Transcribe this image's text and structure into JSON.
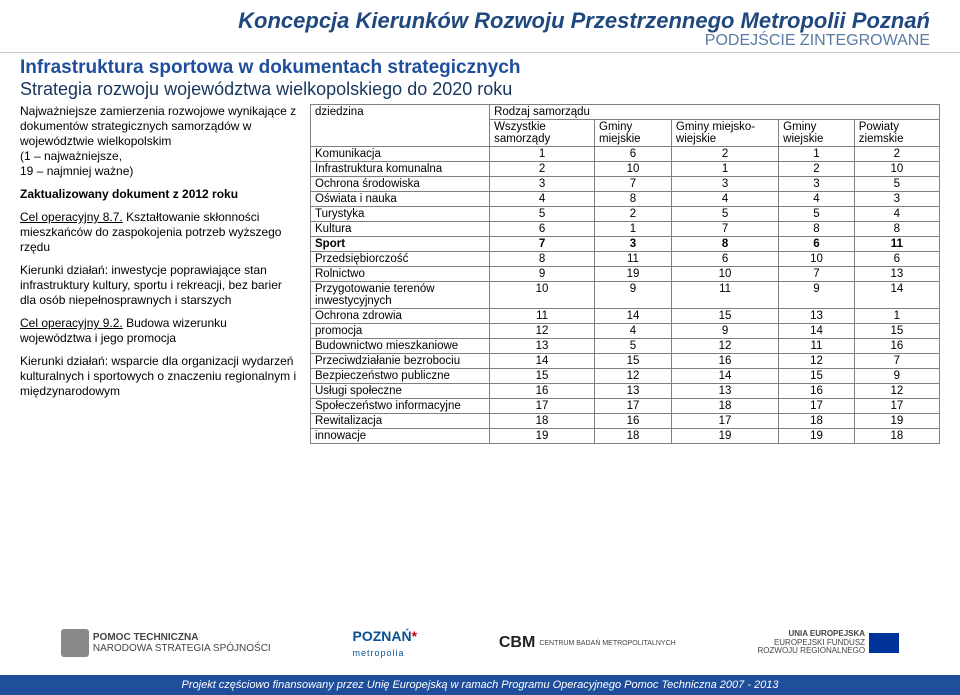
{
  "header": {
    "main_title": "Koncepcja Kierunków Rozwoju Przestrzennego Metropolii Poznań",
    "sub_title": "PODEJŚCIE ZINTEGROWANE"
  },
  "section": {
    "heading": "Infrastruktura sportowa w dokumentach strategicznych",
    "sub": "Strategia rozwoju województwa wielkopolskiego do 2020 roku"
  },
  "left": {
    "p1a": "Najważniejsze zamierzenia rozwojowe wynikające z dokumentów strategicznych samorządów w województwie wielkopolskim",
    "p1b": "(1 – najważniejsze,",
    "p1c": "19 – najmniej ważne)",
    "block_title": "Zaktualizowany dokument z 2012 roku",
    "cel87_label": "Cel operacyjny 8.7.",
    "cel87_text": " Kształtowanie skłonności mieszkańców do zaspokojenia potrzeb wyższego rzędu",
    "kierunki1": "Kierunki działań: inwestycje poprawiające stan infrastruktury kultury, sportu i rekreacji, bez barier dla osób niepełnosprawnych i starszych",
    "cel92_label": "Cel operacyjny 9.2.",
    "cel92_text": " Budowa wizerunku województwa i jego promocja",
    "kierunki2": "Kierunki działań:  wsparcie dla organizacji wydarzeń kulturalnych i sportowych o znaczeniu regionalnym i międzynarodowym"
  },
  "table": {
    "head": {
      "dziedzina": "dziedzina",
      "rodzaj": "Rodzaj samorządu",
      "c1": "Wszystkie samorządy",
      "c2": "Gminy miejskie",
      "c3": "Gminy miejsko-wiejskie",
      "c4": "Gminy wiejskie",
      "c5": "Powiaty ziemskie"
    },
    "rows": [
      {
        "label": "Komunikacja",
        "v": [
          "1",
          "6",
          "2",
          "1",
          "2"
        ]
      },
      {
        "label": "Infrastruktura komunalna",
        "v": [
          "2",
          "10",
          "1",
          "2",
          "10"
        ]
      },
      {
        "label": "Ochrona środowiska",
        "v": [
          "3",
          "7",
          "3",
          "3",
          "5"
        ]
      },
      {
        "label": "Oświata i nauka",
        "v": [
          "4",
          "8",
          "4",
          "4",
          "3"
        ]
      },
      {
        "label": "Turystyka",
        "v": [
          "5",
          "2",
          "5",
          "5",
          "4"
        ]
      },
      {
        "label": "Kultura",
        "v": [
          "6",
          "1",
          "7",
          "8",
          "8"
        ]
      },
      {
        "label": "Sport",
        "v": [
          "7",
          "3",
          "8",
          "6",
          "11"
        ],
        "bold": true
      },
      {
        "label": "Przedsiębiorczość",
        "v": [
          "8",
          "11",
          "6",
          "10",
          "6"
        ]
      },
      {
        "label": "Rolnictwo",
        "v": [
          "9",
          "19",
          "10",
          "7",
          "13"
        ]
      },
      {
        "label": "Przygotowanie terenów inwestycyjnych",
        "v": [
          "10",
          "9",
          "11",
          "9",
          "14"
        ]
      },
      {
        "label": "Ochrona zdrowia",
        "v": [
          "11",
          "14",
          "15",
          "13",
          "1"
        ]
      },
      {
        "label": "promocja",
        "v": [
          "12",
          "4",
          "9",
          "14",
          "15"
        ]
      },
      {
        "label": "Budownictwo mieszkaniowe",
        "v": [
          "13",
          "5",
          "12",
          "11",
          "16"
        ]
      },
      {
        "label": "Przeciwdziałanie bezrobociu",
        "v": [
          "14",
          "15",
          "16",
          "12",
          "7"
        ]
      },
      {
        "label": "Bezpieczeństwo publiczne",
        "v": [
          "15",
          "12",
          "14",
          "15",
          "9"
        ]
      },
      {
        "label": "Usługi społeczne",
        "v": [
          "16",
          "13",
          "13",
          "16",
          "12"
        ]
      },
      {
        "label": "Społeczeństwo informacyjne",
        "v": [
          "17",
          "17",
          "18",
          "17",
          "17"
        ]
      },
      {
        "label": "Rewitalizacja",
        "v": [
          "18",
          "16",
          "17",
          "18",
          "19"
        ]
      },
      {
        "label": "innowacje",
        "v": [
          "19",
          "18",
          "19",
          "19",
          "18"
        ]
      }
    ]
  },
  "logos": {
    "l1a": "POMOC TECHNICZNA",
    "l1b": "NARODOWA STRATEGIA SPÓJNOŚCI",
    "l2a": "POZNAŃ",
    "l2b": "metropolia",
    "l3a": "CBM",
    "l3b": "CENTRUM BADAŃ METROPOLITALNYCH",
    "l4a": "UNIA EUROPEJSKA",
    "l4b": "EUROPEJSKI FUNDUSZ",
    "l4c": "ROZWOJU REGIONALNEGO"
  },
  "footer": "Projekt częściowo finansowany przez Unię Europejską w ramach Programu Operacyjnego Pomoc Techniczna 2007 - 2013",
  "colors": {
    "title": "#1f487e",
    "subtitle": "#5b7ba3",
    "heading": "#1f4e9b",
    "footer_bg": "#1f4e9b",
    "border": "#808080"
  }
}
